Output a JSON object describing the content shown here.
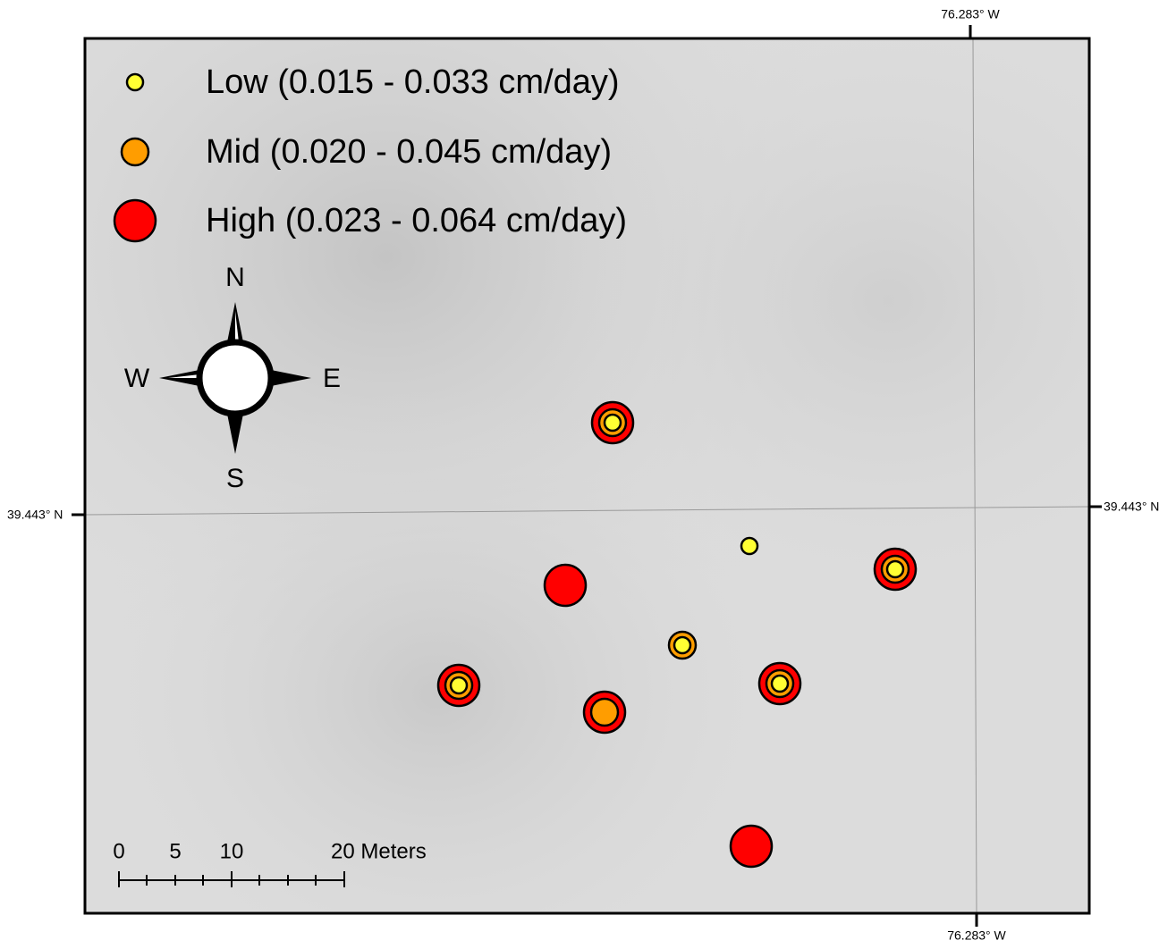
{
  "legend": [
    {
      "label": "Low (0.015 - 0.033 cm/day)"
    },
    {
      "label": "Mid (0.020 - 0.045 cm/day)"
    },
    {
      "label": "High (0.023 - 0.064 cm/day)"
    }
  ],
  "compass": {
    "north": "N",
    "south": "S",
    "west": "W",
    "east": "E"
  },
  "coordinates": {
    "top": "76.283° W",
    "bottom": "76.283° W",
    "left": "39.443° N",
    "right": "39.443° N"
  },
  "scale_bar": {
    "labels": [
      "0",
      "5",
      "10",
      "20 Meters"
    ]
  }
}
